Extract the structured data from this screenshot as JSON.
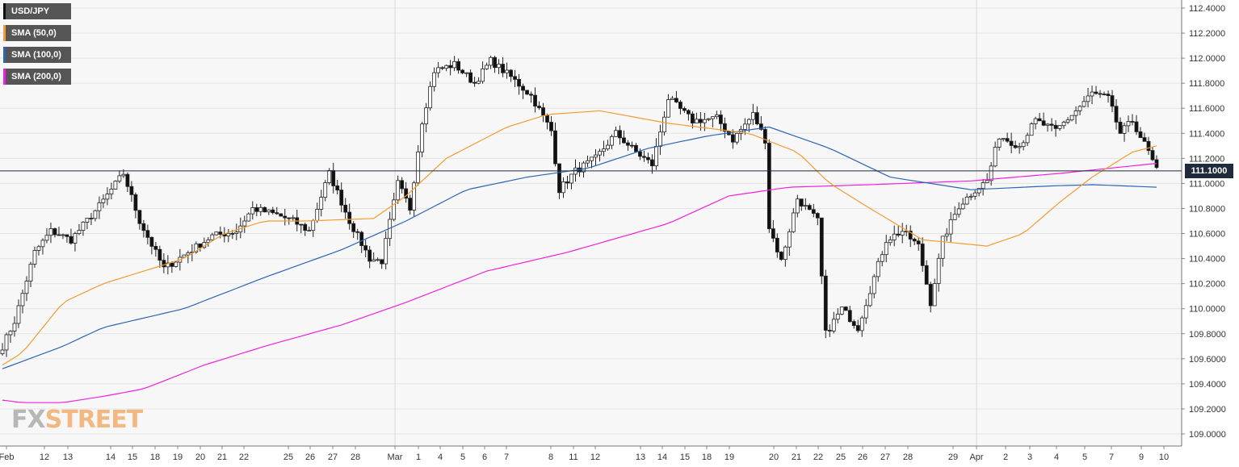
{
  "chart_data": {
    "type": "candlestick",
    "symbol": "USD/JPY",
    "legend": [
      {
        "label": "USD/JPY",
        "color": "#111111"
      },
      {
        "label": "SMA (50,0)",
        "color": "#f39c33"
      },
      {
        "label": "SMA (100,0)",
        "color": "#2e64b4"
      },
      {
        "label": "SMA (200,0)",
        "color": "#ee22dd"
      }
    ],
    "y_ticks": [
      "112.4000",
      "112.2000",
      "112.0000",
      "111.8000",
      "111.6000",
      "111.4000",
      "111.2000",
      "111.0000",
      "110.8000",
      "110.6000",
      "110.4000",
      "110.2000",
      "110.0000",
      "109.8000",
      "109.6000",
      "109.4000",
      "109.2000",
      "109.0000"
    ],
    "ylim": [
      108.95,
      112.43
    ],
    "x_labels": [
      "Feb",
      "12",
      "13",
      "14",
      "15",
      "18",
      "19",
      "20",
      "21",
      "22",
      "25",
      "26",
      "27",
      "28",
      "Mar",
      "1",
      "4",
      "5",
      "6",
      "7",
      "8",
      "11",
      "12",
      "13",
      "14",
      "15",
      "18",
      "19",
      "20",
      "21",
      "22",
      "25",
      "26",
      "27",
      "28",
      "29",
      "Apr",
      "2",
      "3",
      "4",
      "5",
      "7",
      "9",
      "10"
    ],
    "last_price": 111.1,
    "last_price_label": "111.1000",
    "close_waypoints": [
      [
        0,
        109.7
      ],
      [
        3,
        109.9
      ],
      [
        8,
        110.45
      ],
      [
        12,
        110.62
      ],
      [
        17,
        110.55
      ],
      [
        24,
        110.82
      ],
      [
        30,
        111.08
      ],
      [
        34,
        110.7
      ],
      [
        40,
        110.32
      ],
      [
        46,
        110.45
      ],
      [
        52,
        110.58
      ],
      [
        58,
        110.62
      ],
      [
        62,
        110.8
      ],
      [
        68,
        110.75
      ],
      [
        72,
        110.7
      ],
      [
        76,
        110.62
      ],
      [
        81,
        111.08
      ],
      [
        86,
        110.7
      ],
      [
        91,
        110.4
      ],
      [
        94,
        110.38
      ],
      [
        98,
        111.0
      ],
      [
        101,
        110.8
      ],
      [
        104,
        111.5
      ],
      [
        107,
        111.9
      ],
      [
        112,
        111.95
      ],
      [
        117,
        111.8
      ],
      [
        121,
        111.98
      ],
      [
        126,
        111.85
      ],
      [
        131,
        111.7
      ],
      [
        136,
        111.42
      ],
      [
        138,
        110.95
      ],
      [
        142,
        111.1
      ],
      [
        147,
        111.2
      ],
      [
        152,
        111.4
      ],
      [
        157,
        111.25
      ],
      [
        161,
        111.15
      ],
      [
        165,
        111.68
      ],
      [
        171,
        111.5
      ],
      [
        177,
        111.52
      ],
      [
        181,
        111.35
      ],
      [
        186,
        111.55
      ],
      [
        189,
        111.35
      ],
      [
        190,
        110.65
      ],
      [
        193,
        110.38
      ],
      [
        197,
        110.88
      ],
      [
        202,
        110.7
      ],
      [
        204,
        109.8
      ],
      [
        208,
        110.0
      ],
      [
        212,
        109.85
      ],
      [
        215,
        110.15
      ],
      [
        219,
        110.55
      ],
      [
        223,
        110.62
      ],
      [
        227,
        110.5
      ],
      [
        230,
        110.05
      ],
      [
        233,
        110.55
      ],
      [
        237,
        110.82
      ],
      [
        241,
        110.95
      ],
      [
        244,
        111.02
      ],
      [
        247,
        111.38
      ],
      [
        252,
        111.3
      ],
      [
        256,
        111.5
      ],
      [
        261,
        111.42
      ],
      [
        266,
        111.58
      ],
      [
        270,
        111.72
      ],
      [
        274,
        111.68
      ],
      [
        277,
        111.4
      ],
      [
        280,
        111.5
      ],
      [
        284,
        111.25
      ],
      [
        286,
        111.1
      ]
    ],
    "sma50": [
      [
        0,
        109.55
      ],
      [
        5,
        109.65
      ],
      [
        15,
        110.05
      ],
      [
        25,
        110.2
      ],
      [
        35,
        110.3
      ],
      [
        45,
        110.4
      ],
      [
        55,
        110.6
      ],
      [
        65,
        110.7
      ],
      [
        75,
        110.7
      ],
      [
        92,
        110.72
      ],
      [
        100,
        110.9
      ],
      [
        110,
        111.2
      ],
      [
        125,
        111.45
      ],
      [
        135,
        111.55
      ],
      [
        148,
        111.58
      ],
      [
        165,
        111.48
      ],
      [
        185,
        111.4
      ],
      [
        197,
        111.25
      ],
      [
        205,
        111.0
      ],
      [
        215,
        110.8
      ],
      [
        228,
        110.55
      ],
      [
        244,
        110.5
      ],
      [
        253,
        110.6
      ],
      [
        262,
        110.85
      ],
      [
        270,
        111.05
      ],
      [
        280,
        111.25
      ],
      [
        286,
        111.3
      ]
    ],
    "sma100": [
      [
        0,
        109.52
      ],
      [
        15,
        109.7
      ],
      [
        25,
        109.85
      ],
      [
        45,
        110.0
      ],
      [
        65,
        110.25
      ],
      [
        84,
        110.47
      ],
      [
        100,
        110.7
      ],
      [
        115,
        110.95
      ],
      [
        130,
        111.05
      ],
      [
        145,
        111.12
      ],
      [
        160,
        111.28
      ],
      [
        175,
        111.38
      ],
      [
        190,
        111.45
      ],
      [
        205,
        111.28
      ],
      [
        220,
        111.05
      ],
      [
        240,
        110.95
      ],
      [
        260,
        110.98
      ],
      [
        270,
        110.99
      ],
      [
        286,
        110.97
      ]
    ],
    "sma200": [
      [
        0,
        109.27
      ],
      [
        5,
        109.25
      ],
      [
        15,
        109.25
      ],
      [
        25,
        109.3
      ],
      [
        35,
        109.36
      ],
      [
        50,
        109.55
      ],
      [
        65,
        109.7
      ],
      [
        84,
        109.87
      ],
      [
        100,
        110.05
      ],
      [
        120,
        110.3
      ],
      [
        140,
        110.45
      ],
      [
        165,
        110.68
      ],
      [
        180,
        110.9
      ],
      [
        195,
        110.97
      ],
      [
        215,
        110.99
      ],
      [
        240,
        111.02
      ],
      [
        262,
        111.08
      ],
      [
        286,
        111.16
      ]
    ]
  },
  "logo": {
    "part1": "FX",
    "part2": "STREET"
  }
}
